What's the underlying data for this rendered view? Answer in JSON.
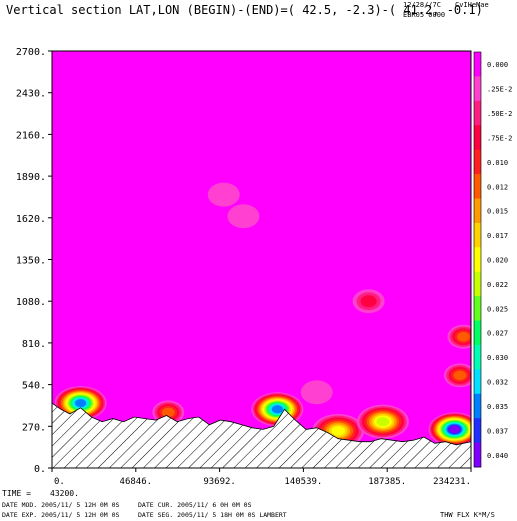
{
  "header": {
    "title": "Vertical section LAT,LON (BEGIN)-(END)=( 42.5, -2.3)-( 41.2, -0.1)",
    "date": "12/28//7C",
    "user": "CvIHeMae",
    "run": "EBR05 0000"
  },
  "footer": {
    "time_label": "TIME =",
    "time_value": "43200.",
    "line1_left": "DATE MOD. 2005/11/ 5  12H 0M 0S",
    "line1_right": "DATE CUR. 2005/11/ 6   0H 0M 0S",
    "line2_left": "DATE EXP. 2005/11/ 5  12H 0M 0S",
    "line2_right": "DATE SEG. 2005/11/ 5  18H 0M 0S   LAMBERT",
    "field": "THW FLX K*M/S"
  },
  "colors": {
    "background_field": "#ff00ff",
    "terrain_hatch": "#000000"
  },
  "chart_data": {
    "type": "heatmap",
    "title": "Vertical section LAT,LON (BEGIN)-(END)=( 42.5, -2.3)-( 41.2, -0.1)",
    "xlabel": "",
    "ylabel": "",
    "xlim": [
      0,
      234231
    ],
    "ylim": [
      0,
      2700
    ],
    "x_ticks": [
      "0.",
      "46846.",
      "93692.",
      "140539.",
      "187385.",
      "234231."
    ],
    "y_ticks": [
      "0.",
      "270.",
      "540.",
      "810.",
      "1080.",
      "1350.",
      "1620.",
      "1890.",
      "2160.",
      "2430.",
      "2700."
    ],
    "y_tick_values": [
      0,
      270,
      540,
      810,
      1080,
      1350,
      1620,
      1890,
      2160,
      2430,
      2700
    ],
    "x_tick_values": [
      0,
      46846,
      93692,
      140539,
      187385,
      234231
    ],
    "colorbar": {
      "labels": [
        "0.000",
        ".25E-2",
        ".50E-2",
        ".75E-2",
        "0.010",
        "0.012",
        "0.015",
        "0.017",
        "0.020",
        "0.022",
        "0.025",
        "0.027",
        "0.030",
        "0.032",
        "0.035",
        "0.037",
        "0.040"
      ],
      "colors": [
        "#ff00ff",
        "#ff40d0",
        "#ff1e82",
        "#ff0040",
        "#ff2020",
        "#ff5a00",
        "#ff9a00",
        "#ffd200",
        "#ffff00",
        "#c8ff00",
        "#60ff20",
        "#00ff60",
        "#00ffb4",
        "#00e0ff",
        "#0080ff",
        "#2030ff",
        "#8000ff"
      ]
    },
    "terrain": {
      "x": [
        0,
        5000,
        10000,
        16000,
        22000,
        28000,
        34000,
        40000,
        46000,
        52000,
        58000,
        64000,
        70000,
        76000,
        82000,
        88000,
        94000,
        100000,
        106000,
        112000,
        118000,
        124000,
        130000,
        136000,
        142000,
        148000,
        154000,
        160000,
        166000,
        172000,
        178000,
        184000,
        190000,
        196000,
        202000,
        208000,
        214000,
        220000,
        226000,
        234231
      ],
      "y": [
        420,
        380,
        350,
        390,
        330,
        300,
        320,
        300,
        330,
        320,
        310,
        340,
        300,
        320,
        330,
        280,
        310,
        300,
        280,
        260,
        250,
        270,
        380,
        310,
        250,
        260,
        230,
        190,
        180,
        170,
        170,
        190,
        180,
        170,
        180,
        200,
        160,
        170,
        150,
        170
      ]
    },
    "features": [
      {
        "x": 16000,
        "y": 420,
        "level": 0.035
      },
      {
        "x": 65000,
        "y": 360,
        "level": 0.012
      },
      {
        "x": 126000,
        "y": 380,
        "level": 0.035
      },
      {
        "x": 160000,
        "y": 240,
        "level": 0.02
      },
      {
        "x": 185000,
        "y": 300,
        "level": 0.022
      },
      {
        "x": 225000,
        "y": 250,
        "level": 0.04
      },
      {
        "x": 228000,
        "y": 600,
        "level": 0.012
      },
      {
        "x": 230000,
        "y": 850,
        "level": 0.012
      },
      {
        "x": 177000,
        "y": 1080,
        "level": 0.0075
      },
      {
        "x": 148000,
        "y": 490,
        "level": 0.0025
      },
      {
        "x": 107000,
        "y": 1630,
        "level": 0.0025
      },
      {
        "x": 96000,
        "y": 1770,
        "level": 0.0025
      }
    ]
  }
}
